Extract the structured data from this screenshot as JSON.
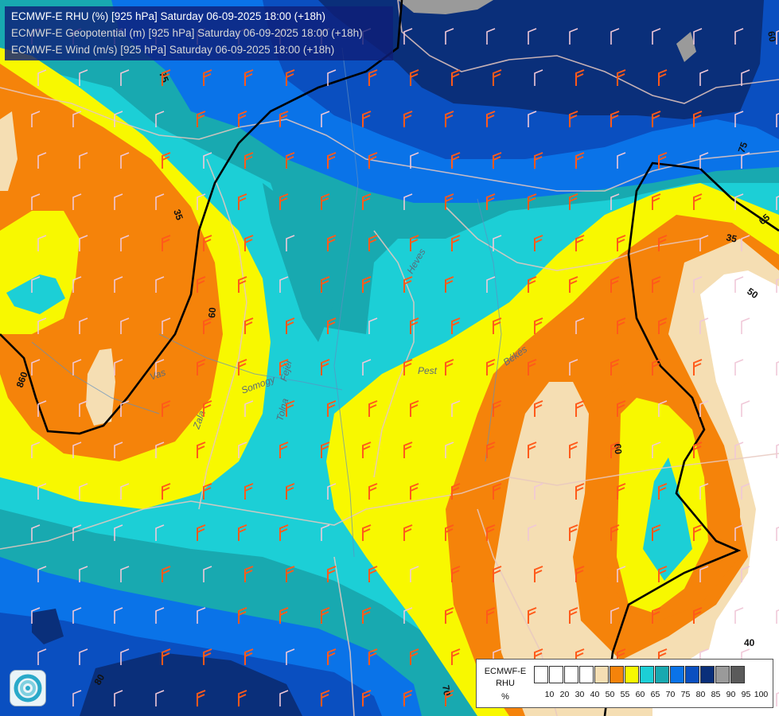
{
  "titles": {
    "line1": "ECMWF-E RHU (%) [925 hPa] Saturday 06-09-2025 18:00 (+18h)",
    "line2": "ECMWF-E Geopotential (m) [925 hPa] Saturday 06-09-2025 18:00 (+18h)",
    "line3": "ECMWF-E Wind (m/s) [925 hPa] Saturday 06-09-2025 18:00 (+18h)"
  },
  "legend": {
    "model": "ECMWF-E",
    "variable": "RHU",
    "unit": "%",
    "classes": [
      {
        "label": "10",
        "color": "#ffffff"
      },
      {
        "label": "20",
        "color": "#ffffff"
      },
      {
        "label": "30",
        "color": "#ffffff"
      },
      {
        "label": "40",
        "color": "#ffffff"
      },
      {
        "label": "50",
        "color": "#f5deb3"
      },
      {
        "label": "55",
        "color": "#f5830a"
      },
      {
        "label": "60",
        "color": "#f8f800"
      },
      {
        "label": "65",
        "color": "#1ccfd6"
      },
      {
        "label": "70",
        "color": "#18a9b0"
      },
      {
        "label": "75",
        "color": "#0a73e8"
      },
      {
        "label": "80",
        "color": "#0a4fc0"
      },
      {
        "label": "85",
        "color": "#0a2f7a"
      },
      {
        "label": "90",
        "color": "#9a9a9a"
      },
      {
        "label": "95",
        "color": "#5a5a5a"
      },
      {
        "label": "100",
        "color": ""
      }
    ]
  },
  "contour_labels": {
    "gp_860": "860",
    "rh_35_a": "35",
    "rh_35_b": "35",
    "rh_50": "50",
    "rh_60_a": "60",
    "rh_60_b": "60",
    "rh_75_a": "75",
    "rh_75_b": "75",
    "rh_40": "40",
    "rh_70": "70",
    "rh_80": "80",
    "rh_60_c": "60",
    "rh_65": "65"
  },
  "map_labels": {
    "pest": "Pest",
    "heves": "Heves",
    "bekes": "Békés",
    "vas": "Vas",
    "zala": "Zala",
    "somogy": "Somogy",
    "tolna": "Tolna",
    "fejer": "Fejér"
  },
  "colors": {
    "rh_50": "#f5deb3",
    "rh_55": "#f5830a",
    "rh_60": "#f8f800",
    "rh_65": "#1ccfd6",
    "rh_70": "#18a9b0",
    "rh_75": "#0a73e8",
    "rh_80": "#0a4fc0",
    "rh_85": "#0a2f7a",
    "rh_90": "#9a9a9a",
    "wind_strong": "#ff5a1a",
    "wind_weak": "#f0c8d8"
  }
}
